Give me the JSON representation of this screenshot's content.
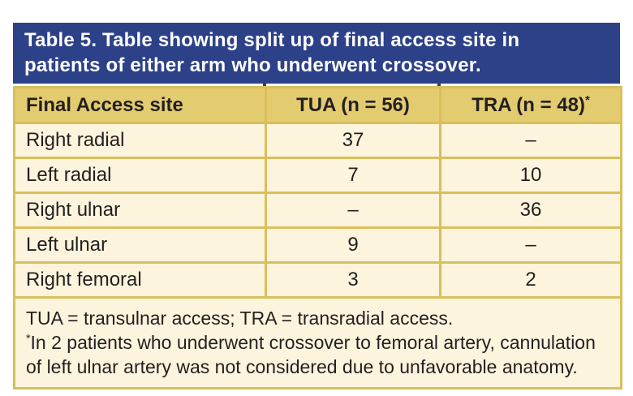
{
  "figure": {
    "caption": {
      "line1": "Table 5. Table showing split up of final access site in",
      "line2": "patients of either arm who underwent crossover."
    },
    "table": {
      "columns": [
        {
          "label": "Final Access site",
          "sup": ""
        },
        {
          "label": "TUA (n = 56)",
          "sup": ""
        },
        {
          "label": "TRA (n = 48)",
          "sup": "*"
        }
      ],
      "rows": [
        {
          "site": "Right radial",
          "tua": "37",
          "tra": "–"
        },
        {
          "site": "Left radial",
          "tua": "7",
          "tra": "10"
        },
        {
          "site": "Right ulnar",
          "tua": "–",
          "tra": "36"
        },
        {
          "site": "Left ulnar",
          "tua": "9",
          "tra": "–"
        },
        {
          "site": "Right femoral",
          "tua": "3",
          "tra": "2"
        }
      ],
      "footnotes": {
        "line1": "TUA = transulnar access; TRA = transradial access.",
        "line2_marker": "*",
        "line2": "In 2 patients who underwent crossover to femoral artery, cannulation of left ulnar artery was not considered due to unfavorable anatomy."
      }
    },
    "colors": {
      "caption_background": "#2d4189",
      "header_gold": "#e3cc70",
      "border_gold": "#d9bf5b",
      "cell_cream": "#fdf4dd",
      "text": "#231f20"
    }
  }
}
